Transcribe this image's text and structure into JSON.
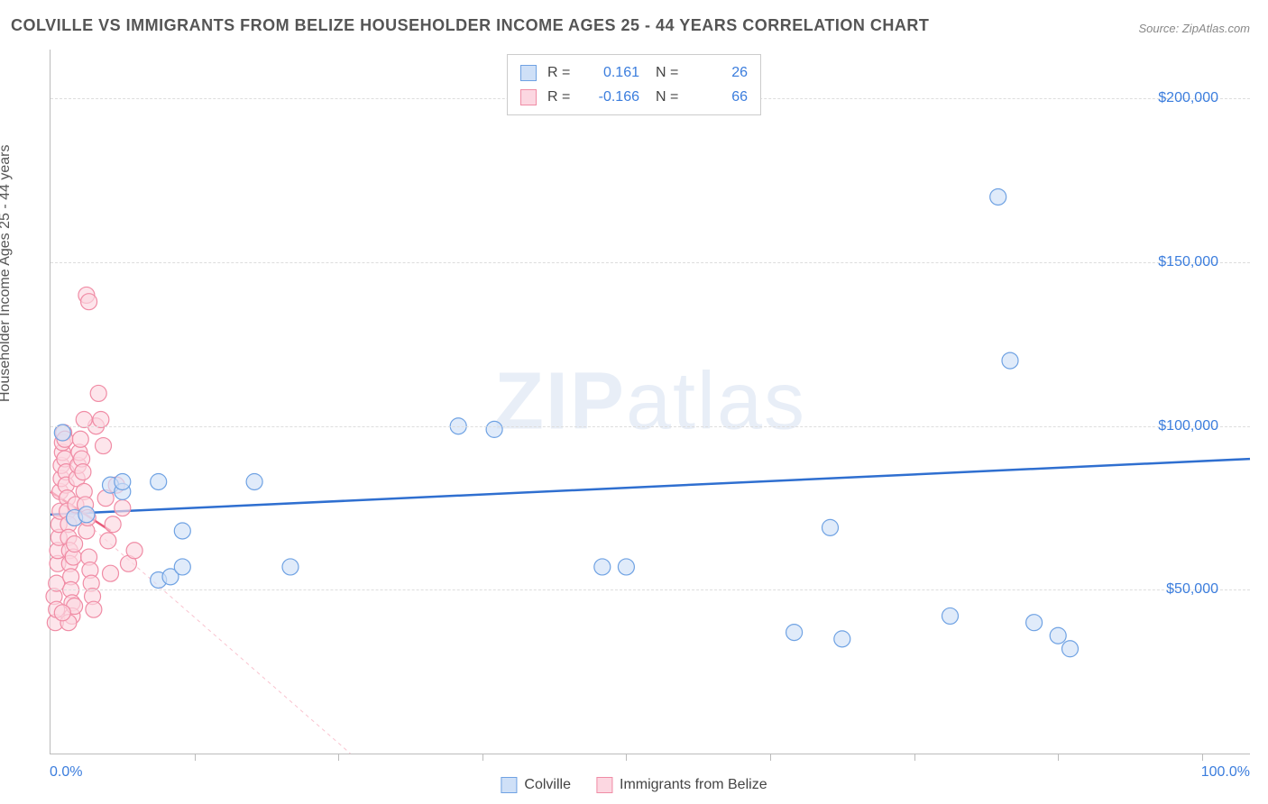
{
  "title": "COLVILLE VS IMMIGRANTS FROM BELIZE HOUSEHOLDER INCOME AGES 25 - 44 YEARS CORRELATION CHART",
  "source": "Source: ZipAtlas.com",
  "ylabel": "Householder Income Ages 25 - 44 years",
  "watermark": {
    "bold": "ZIP",
    "light": "atlas"
  },
  "chart": {
    "type": "scatter",
    "xlim": [
      0,
      100
    ],
    "ylim": [
      0,
      215000
    ],
    "x_label_min": "0.0%",
    "x_label_max": "100.0%",
    "y_ticks": [
      50000,
      100000,
      150000,
      200000
    ],
    "y_tick_labels": [
      "$50,000",
      "$100,000",
      "$150,000",
      "$200,000"
    ],
    "x_ticks": [
      12,
      24,
      36,
      48,
      60,
      72,
      84,
      96
    ],
    "background_color": "#ffffff",
    "grid_color": "#dddddd",
    "tick_color": "#bbbbbb",
    "marker_radius": 9,
    "marker_stroke_width": 1.2,
    "line_width_solid": 2.5,
    "line_width_dash": 1,
    "series": [
      {
        "name": "Colville",
        "fill": "#cfe0f7",
        "stroke": "#6fa2e3",
        "line_color": "#2f6fd0",
        "line_style": "solid",
        "trend": {
          "x1": 0,
          "y1": 73000,
          "x2": 100,
          "y2": 90000
        },
        "R": "0.161",
        "N": "26",
        "points": [
          [
            1,
            98000
          ],
          [
            2,
            72000
          ],
          [
            3,
            73000
          ],
          [
            5,
            82000
          ],
          [
            6,
            80000
          ],
          [
            6,
            83000
          ],
          [
            9,
            83000
          ],
          [
            9,
            53000
          ],
          [
            10,
            54000
          ],
          [
            11,
            68000
          ],
          [
            11,
            57000
          ],
          [
            17,
            83000
          ],
          [
            20,
            57000
          ],
          [
            34,
            100000
          ],
          [
            37,
            99000
          ],
          [
            46,
            57000
          ],
          [
            48,
            57000
          ],
          [
            62,
            37000
          ],
          [
            65,
            69000
          ],
          [
            66,
            35000
          ],
          [
            75,
            42000
          ],
          [
            79,
            170000
          ],
          [
            80,
            120000
          ],
          [
            82,
            40000
          ],
          [
            84,
            36000
          ],
          [
            85,
            32000
          ]
        ]
      },
      {
        "name": "Immigrants from Belize",
        "fill": "#fcd7e1",
        "stroke": "#f08ca5",
        "line_color": "#f9c3cf",
        "line_style": "dashed",
        "trend_solid": {
          "x1": 0,
          "y1": 80000,
          "x2": 5,
          "y2": 68000
        },
        "trend": {
          "x1": 0,
          "y1": 80000,
          "x2": 25,
          "y2": 0
        },
        "R": "-0.166",
        "N": "66",
        "points": [
          [
            0.3,
            48000
          ],
          [
            0.4,
            40000
          ],
          [
            0.5,
            44000
          ],
          [
            0.5,
            52000
          ],
          [
            0.6,
            58000
          ],
          [
            0.6,
            62000
          ],
          [
            0.7,
            66000
          ],
          [
            0.7,
            70000
          ],
          [
            0.8,
            74000
          ],
          [
            0.8,
            80000
          ],
          [
            0.9,
            84000
          ],
          [
            0.9,
            88000
          ],
          [
            1.0,
            92000
          ],
          [
            1.0,
            95000
          ],
          [
            1.1,
            98000
          ],
          [
            1.2,
            96000
          ],
          [
            1.2,
            90000
          ],
          [
            1.3,
            86000
          ],
          [
            1.3,
            82000
          ],
          [
            1.4,
            78000
          ],
          [
            1.4,
            74000
          ],
          [
            1.5,
            70000
          ],
          [
            1.5,
            66000
          ],
          [
            1.6,
            62000
          ],
          [
            1.6,
            58000
          ],
          [
            1.7,
            54000
          ],
          [
            1.7,
            50000
          ],
          [
            1.8,
            46000
          ],
          [
            1.8,
            42000
          ],
          [
            1.9,
            60000
          ],
          [
            2.0,
            64000
          ],
          [
            2.0,
            72000
          ],
          [
            2.1,
            76000
          ],
          [
            2.2,
            84000
          ],
          [
            2.3,
            88000
          ],
          [
            2.4,
            92000
          ],
          [
            2.5,
            96000
          ],
          [
            2.6,
            90000
          ],
          [
            2.7,
            86000
          ],
          [
            2.8,
            80000
          ],
          [
            2.9,
            76000
          ],
          [
            3.0,
            68000
          ],
          [
            3.1,
            72000
          ],
          [
            3.2,
            60000
          ],
          [
            3.3,
            56000
          ],
          [
            3.4,
            52000
          ],
          [
            3.5,
            48000
          ],
          [
            3.6,
            44000
          ],
          [
            3.8,
            100000
          ],
          [
            4.0,
            110000
          ],
          [
            4.2,
            102000
          ],
          [
            4.4,
            94000
          ],
          [
            4.6,
            78000
          ],
          [
            4.8,
            65000
          ],
          [
            5.0,
            55000
          ],
          [
            5.2,
            70000
          ],
          [
            5.5,
            82000
          ],
          [
            6.0,
            75000
          ],
          [
            6.5,
            58000
          ],
          [
            7.0,
            62000
          ],
          [
            3.0,
            140000
          ],
          [
            3.2,
            138000
          ],
          [
            2.8,
            102000
          ],
          [
            2.0,
            45000
          ],
          [
            1.5,
            40000
          ],
          [
            1.0,
            43000
          ]
        ]
      }
    ]
  },
  "bottom_legend": [
    {
      "label": "Colville",
      "swatch": "blue"
    },
    {
      "label": "Immigrants from Belize",
      "swatch": "pink"
    }
  ]
}
